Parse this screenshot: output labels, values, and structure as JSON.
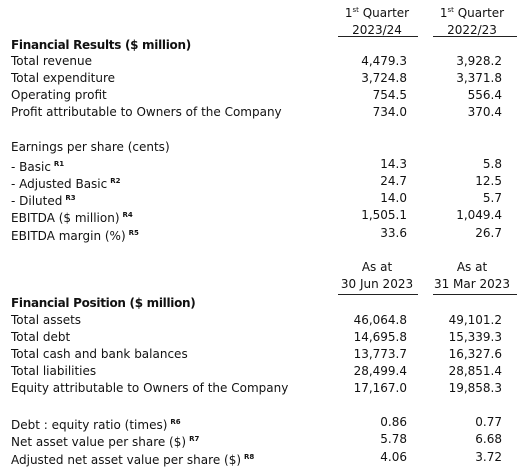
{
  "columns_top": {
    "col1": {
      "line1_prefix": "1",
      "line1_sup": "st",
      "line1_rest": " Quarter",
      "line2": "2023/24"
    },
    "col2": {
      "line1_prefix": "1",
      "line1_sup": "st",
      "line1_rest": " Quarter",
      "line2": "2022/23"
    }
  },
  "financial_results": {
    "title": "Financial Results ($ million)",
    "rows": [
      {
        "label": "Total revenue",
        "v1": "4,479.3",
        "v2": "3,928.2"
      },
      {
        "label": "Total expenditure",
        "v1": "3,724.8",
        "v2": "3,371.8"
      },
      {
        "label": "Operating profit",
        "v1": "754.5",
        "v2": "556.4"
      },
      {
        "label": "Profit attributable to Owners of the Company",
        "v1": "734.0",
        "v2": "370.4"
      }
    ]
  },
  "eps": {
    "title": "Earnings per share (cents)",
    "rows": [
      {
        "label": "- Basic",
        "note": "R1",
        "v1": "14.3",
        "v2": "5.8"
      },
      {
        "label": "- Adjusted Basic",
        "note": "R2",
        "v1": "24.7",
        "v2": "12.5"
      },
      {
        "label": "- Diluted",
        "note": "R3",
        "v1": "14.0",
        "v2": "5.7"
      },
      {
        "label": "EBITDA ($ million)",
        "note": "R4",
        "v1": "1,505.1",
        "v2": "1,049.4"
      },
      {
        "label": "EBITDA margin (%)",
        "note": "R5",
        "v1": "33.6",
        "v2": "26.7"
      }
    ]
  },
  "columns_mid": {
    "col1": {
      "line1": "As at",
      "line2": "30 Jun 2023"
    },
    "col2": {
      "line1": "As at",
      "line2": "31 Mar 2023"
    }
  },
  "financial_position": {
    "title": "Financial Position ($ million)",
    "rows": [
      {
        "label": "Total assets",
        "v1": "46,064.8",
        "v2": "49,101.2"
      },
      {
        "label": "Total debt",
        "v1": "14,695.8",
        "v2": "15,339.3"
      },
      {
        "label": "Total cash and bank balances",
        "v1": "13,773.7",
        "v2": "16,327.6"
      },
      {
        "label": "Total liabilities",
        "v1": "28,499.4",
        "v2": "28,851.4"
      },
      {
        "label": "Equity attributable to Owners of the Company",
        "v1": "17,167.0",
        "v2": "19,858.3"
      }
    ]
  },
  "ratios": {
    "rows": [
      {
        "label": "Debt : equity ratio (times)",
        "note": "R6",
        "v1": "0.86",
        "v2": "0.77"
      },
      {
        "label": "Net asset value per share ($)",
        "note": "R7",
        "v1": "5.78",
        "v2": "6.68"
      },
      {
        "label": "Adjusted net asset value per share ($)",
        "note": "R8",
        "v1": "4.06",
        "v2": "3.72"
      }
    ]
  }
}
